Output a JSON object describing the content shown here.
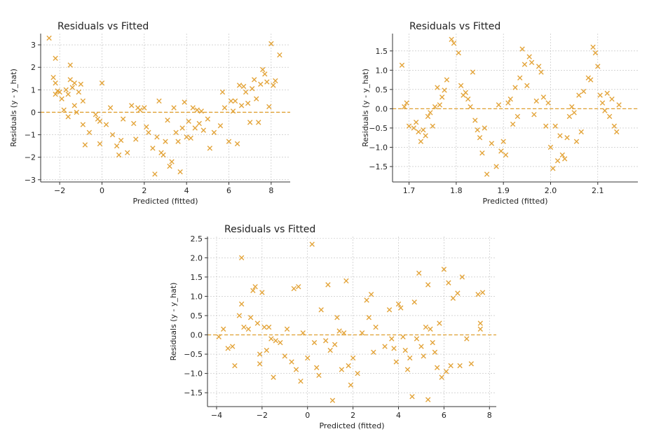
{
  "colors": {
    "marker": "#E3A43A",
    "zero_line": "#E0A030",
    "grid": "#bdbdbd"
  },
  "chart_data": [
    {
      "type": "scatter",
      "title": "Residuals vs Fitted",
      "xlabel": "Predicted (fitted)",
      "ylabel": "Residuals (y - y_hat)",
      "xlim": [
        -2.9,
        8.9
      ],
      "ylim": [
        -3.1,
        3.5
      ],
      "xticks": [
        -2,
        0,
        2,
        4,
        6,
        8
      ],
      "yticks": [
        -3,
        -2,
        -1,
        0,
        1,
        2,
        3
      ],
      "reference_line_y": 0,
      "points": [
        [
          -2.5,
          3.3
        ],
        [
          -2.2,
          2.4
        ],
        [
          -2.3,
          1.55
        ],
        [
          -2.2,
          1.3
        ],
        [
          -2.1,
          0.95
        ],
        [
          -2.0,
          0.9
        ],
        [
          -2.2,
          0.8
        ],
        [
          -1.9,
          0.6
        ],
        [
          -1.8,
          0.1
        ],
        [
          -1.7,
          1.0
        ],
        [
          -1.6,
          0.8
        ],
        [
          -1.6,
          -0.2
        ],
        [
          -1.5,
          2.1
        ],
        [
          -1.5,
          1.45
        ],
        [
          -1.4,
          1.1
        ],
        [
          -1.3,
          1.3
        ],
        [
          -1.3,
          0.3
        ],
        [
          -1.2,
          0.0
        ],
        [
          -1.1,
          0.9
        ],
        [
          -1.0,
          1.25
        ],
        [
          -0.9,
          0.5
        ],
        [
          -0.9,
          -0.55
        ],
        [
          -0.8,
          -1.45
        ],
        [
          -0.6,
          -0.9
        ],
        [
          -0.3,
          -0.1
        ],
        [
          -0.2,
          -0.3
        ],
        [
          -0.1,
          -0.4
        ],
        [
          -0.1,
          -1.4
        ],
        [
          0.0,
          1.3
        ],
        [
          0.2,
          -0.55
        ],
        [
          0.4,
          0.2
        ],
        [
          0.5,
          -1.0
        ],
        [
          0.7,
          -1.5
        ],
        [
          0.8,
          -1.9
        ],
        [
          0.9,
          -1.25
        ],
        [
          1.0,
          -0.3
        ],
        [
          1.2,
          -1.8
        ],
        [
          1.4,
          0.3
        ],
        [
          1.5,
          -0.5
        ],
        [
          1.6,
          -1.2
        ],
        [
          1.7,
          0.2
        ],
        [
          1.8,
          0.1
        ],
        [
          2.0,
          0.2
        ],
        [
          2.1,
          -0.65
        ],
        [
          2.2,
          -0.9
        ],
        [
          2.4,
          -1.6
        ],
        [
          2.5,
          -2.75
        ],
        [
          2.6,
          -1.1
        ],
        [
          2.7,
          0.5
        ],
        [
          2.8,
          -1.8
        ],
        [
          2.9,
          -1.9
        ],
        [
          3.0,
          -1.3
        ],
        [
          3.1,
          -0.35
        ],
        [
          3.2,
          -2.4
        ],
        [
          3.3,
          -2.2
        ],
        [
          3.4,
          0.2
        ],
        [
          3.5,
          -0.9
        ],
        [
          3.6,
          -1.3
        ],
        [
          3.7,
          -2.65
        ],
        [
          3.8,
          -0.7
        ],
        [
          3.9,
          0.45
        ],
        [
          4.0,
          -1.1
        ],
        [
          4.1,
          -0.4
        ],
        [
          4.2,
          -1.15
        ],
        [
          4.3,
          0.2
        ],
        [
          4.4,
          -0.7
        ],
        [
          4.5,
          0.1
        ],
        [
          4.6,
          -0.5
        ],
        [
          4.7,
          0.05
        ],
        [
          4.8,
          -0.8
        ],
        [
          5.0,
          -0.3
        ],
        [
          5.1,
          -1.6
        ],
        [
          5.3,
          -0.9
        ],
        [
          5.6,
          -0.6
        ],
        [
          5.7,
          0.9
        ],
        [
          5.8,
          0.2
        ],
        [
          6.0,
          -1.3
        ],
        [
          6.1,
          0.5
        ],
        [
          6.2,
          0.05
        ],
        [
          6.3,
          0.5
        ],
        [
          6.4,
          -1.4
        ],
        [
          6.5,
          1.2
        ],
        [
          6.6,
          0.3
        ],
        [
          6.7,
          1.15
        ],
        [
          6.8,
          0.9
        ],
        [
          6.9,
          0.4
        ],
        [
          7.0,
          -0.45
        ],
        [
          7.1,
          1.05
        ],
        [
          7.2,
          1.45
        ],
        [
          7.3,
          0.6
        ],
        [
          7.5,
          1.25
        ],
        [
          7.6,
          1.9
        ],
        [
          7.7,
          1.7
        ],
        [
          7.8,
          1.35
        ],
        [
          7.9,
          0.25
        ],
        [
          8.0,
          3.05
        ],
        [
          8.1,
          1.2
        ],
        [
          8.2,
          1.4
        ],
        [
          8.4,
          2.55
        ],
        [
          7.4,
          -0.45
        ]
      ]
    },
    {
      "type": "scatter",
      "title": "Residuals vs Fitted",
      "xlabel": "Predicted (fitted)",
      "ylabel": "Residuals (y - y_hat)",
      "xlim": [
        1.665,
        2.185
      ],
      "ylim": [
        -1.9,
        1.95
      ],
      "xticks": [
        1.7,
        1.8,
        1.9,
        2.0,
        2.1
      ],
      "yticks": [
        -1.5,
        -1.0,
        -0.5,
        0.0,
        0.5,
        1.0,
        1.5
      ],
      "reference_line_y": 0,
      "points": [
        [
          1.685,
          1.13
        ],
        [
          1.69,
          0.05
        ],
        [
          1.695,
          0.15
        ],
        [
          1.7,
          -0.45
        ],
        [
          1.71,
          -0.5
        ],
        [
          1.715,
          -0.35
        ],
        [
          1.72,
          -0.6
        ],
        [
          1.725,
          -0.85
        ],
        [
          1.73,
          -0.55
        ],
        [
          1.735,
          -0.7
        ],
        [
          1.74,
          -0.2
        ],
        [
          1.745,
          -0.1
        ],
        [
          1.75,
          -0.45
        ],
        [
          1.755,
          0.05
        ],
        [
          1.76,
          0.55
        ],
        [
          1.765,
          0.1
        ],
        [
          1.77,
          0.3
        ],
        [
          1.775,
          0.48
        ],
        [
          1.78,
          0.75
        ],
        [
          1.79,
          1.8
        ],
        [
          1.795,
          1.7
        ],
        [
          1.805,
          1.45
        ],
        [
          1.81,
          0.6
        ],
        [
          1.815,
          0.35
        ],
        [
          1.82,
          0.42
        ],
        [
          1.825,
          0.25
        ],
        [
          1.83,
          0.05
        ],
        [
          1.835,
          0.95
        ],
        [
          1.84,
          -0.3
        ],
        [
          1.845,
          -0.55
        ],
        [
          1.85,
          -0.75
        ],
        [
          1.855,
          -1.15
        ],
        [
          1.86,
          -0.5
        ],
        [
          1.865,
          -1.7
        ],
        [
          1.875,
          -0.9
        ],
        [
          1.885,
          -1.5
        ],
        [
          1.89,
          0.1
        ],
        [
          1.895,
          -1.1
        ],
        [
          1.9,
          -0.85
        ],
        [
          1.905,
          -1.2
        ],
        [
          1.91,
          0.15
        ],
        [
          1.915,
          0.25
        ],
        [
          1.92,
          -0.4
        ],
        [
          1.925,
          0.55
        ],
        [
          1.93,
          -0.2
        ],
        [
          1.935,
          0.8
        ],
        [
          1.94,
          1.55
        ],
        [
          1.945,
          1.15
        ],
        [
          1.95,
          0.6
        ],
        [
          1.955,
          1.35
        ],
        [
          1.96,
          1.2
        ],
        [
          1.965,
          -0.15
        ],
        [
          1.97,
          0.2
        ],
        [
          1.975,
          1.1
        ],
        [
          1.98,
          0.95
        ],
        [
          1.985,
          0.3
        ],
        [
          1.99,
          -0.45
        ],
        [
          1.995,
          0.15
        ],
        [
          2.0,
          -1.0
        ],
        [
          2.005,
          -1.55
        ],
        [
          2.01,
          -0.45
        ],
        [
          2.015,
          -1.35
        ],
        [
          2.02,
          -0.7
        ],
        [
          2.025,
          -1.2
        ],
        [
          2.03,
          -1.3
        ],
        [
          2.035,
          -0.75
        ],
        [
          2.04,
          -0.2
        ],
        [
          2.045,
          0.05
        ],
        [
          2.05,
          -0.1
        ],
        [
          2.055,
          -0.85
        ],
        [
          2.06,
          0.35
        ],
        [
          2.065,
          -0.6
        ],
        [
          2.07,
          0.45
        ],
        [
          2.08,
          0.8
        ],
        [
          2.085,
          0.75
        ],
        [
          2.09,
          1.6
        ],
        [
          2.095,
          1.45
        ],
        [
          2.1,
          1.1
        ],
        [
          2.105,
          0.35
        ],
        [
          2.11,
          0.15
        ],
        [
          2.115,
          -0.05
        ],
        [
          2.12,
          0.4
        ],
        [
          2.125,
          -0.2
        ],
        [
          2.13,
          0.25
        ],
        [
          2.135,
          -0.45
        ],
        [
          2.14,
          -0.6
        ],
        [
          2.145,
          0.1
        ]
      ]
    },
    {
      "type": "scatter",
      "title": "Residuals vs Fitted",
      "xlabel": "Predicted (fitted)",
      "ylabel": "Residuals (y - y_hat)",
      "xlim": [
        -4.4,
        8.3
      ],
      "ylim": [
        -1.86,
        2.55
      ],
      "xticks": [
        -4,
        -2,
        0,
        2,
        4,
        6,
        8
      ],
      "yticks": [
        -1.5,
        -1.0,
        -0.5,
        0.0,
        0.5,
        1.0,
        1.5,
        2.0,
        2.5
      ],
      "reference_line_y": 0,
      "points": [
        [
          -3.9,
          -0.05
        ],
        [
          -3.7,
          0.15
        ],
        [
          -3.5,
          -0.35
        ],
        [
          -3.3,
          -0.3
        ],
        [
          -3.2,
          -0.8
        ],
        [
          -3.0,
          0.5
        ],
        [
          -2.9,
          2.0
        ],
        [
          -2.9,
          0.8
        ],
        [
          -2.8,
          0.2
        ],
        [
          -2.6,
          0.15
        ],
        [
          -2.5,
          0.45
        ],
        [
          -2.4,
          1.15
        ],
        [
          -2.3,
          1.25
        ],
        [
          -2.2,
          0.3
        ],
        [
          -2.1,
          -0.5
        ],
        [
          -2.1,
          -0.75
        ],
        [
          -2.0,
          1.1
        ],
        [
          -1.9,
          0.2
        ],
        [
          -1.8,
          -0.4
        ],
        [
          -1.7,
          0.2
        ],
        [
          -1.6,
          -0.1
        ],
        [
          -1.5,
          -1.1
        ],
        [
          -1.4,
          -0.15
        ],
        [
          -1.2,
          -0.2
        ],
        [
          -1.0,
          -0.55
        ],
        [
          -0.9,
          0.15
        ],
        [
          -0.7,
          -0.7
        ],
        [
          -0.6,
          1.2
        ],
        [
          -0.5,
          -0.9
        ],
        [
          -0.4,
          1.25
        ],
        [
          -0.3,
          -1.2
        ],
        [
          -0.2,
          0.05
        ],
        [
          0.0,
          -0.6
        ],
        [
          0.2,
          2.35
        ],
        [
          0.3,
          -0.2
        ],
        [
          0.4,
          -0.85
        ],
        [
          0.5,
          -1.05
        ],
        [
          0.6,
          0.65
        ],
        [
          0.8,
          -0.15
        ],
        [
          0.9,
          1.3
        ],
        [
          1.0,
          -0.4
        ],
        [
          1.1,
          -1.7
        ],
        [
          1.2,
          -0.25
        ],
        [
          1.3,
          0.45
        ],
        [
          1.4,
          0.1
        ],
        [
          1.5,
          -0.9
        ],
        [
          1.6,
          0.05
        ],
        [
          1.7,
          1.4
        ],
        [
          1.8,
          -0.8
        ],
        [
          1.9,
          -1.3
        ],
        [
          2.0,
          -0.6
        ],
        [
          2.2,
          -1.0
        ],
        [
          2.4,
          0.05
        ],
        [
          2.6,
          0.9
        ],
        [
          2.7,
          0.45
        ],
        [
          2.8,
          1.05
        ],
        [
          2.9,
          -0.45
        ],
        [
          3.0,
          0.2
        ],
        [
          3.4,
          -0.3
        ],
        [
          3.6,
          0.65
        ],
        [
          3.7,
          -0.1
        ],
        [
          3.8,
          -0.35
        ],
        [
          3.9,
          -0.7
        ],
        [
          4.0,
          0.8
        ],
        [
          4.1,
          0.7
        ],
        [
          4.2,
          -0.05
        ],
        [
          4.3,
          -0.4
        ],
        [
          4.4,
          -0.9
        ],
        [
          4.5,
          -0.6
        ],
        [
          4.6,
          -1.6
        ],
        [
          4.7,
          0.85
        ],
        [
          4.8,
          -0.1
        ],
        [
          4.9,
          1.6
        ],
        [
          5.0,
          -0.3
        ],
        [
          5.1,
          -0.55
        ],
        [
          5.2,
          0.2
        ],
        [
          5.3,
          1.3
        ],
        [
          5.4,
          0.15
        ],
        [
          5.5,
          -0.2
        ],
        [
          5.6,
          -0.45
        ],
        [
          5.7,
          -0.85
        ],
        [
          5.8,
          0.3
        ],
        [
          5.9,
          -1.1
        ],
        [
          6.0,
          1.7
        ],
        [
          6.1,
          -0.95
        ],
        [
          6.2,
          1.35
        ],
        [
          6.3,
          -0.8
        ],
        [
          6.4,
          0.95
        ],
        [
          6.7,
          -0.8
        ],
        [
          6.8,
          1.5
        ],
        [
          7.0,
          -0.1
        ],
        [
          7.2,
          -0.75
        ],
        [
          7.5,
          1.05
        ],
        [
          7.6,
          0.3
        ],
        [
          7.6,
          0.15
        ],
        [
          7.7,
          1.1
        ],
        [
          5.3,
          -1.68
        ],
        [
          6.6,
          1.08
        ]
      ]
    }
  ]
}
